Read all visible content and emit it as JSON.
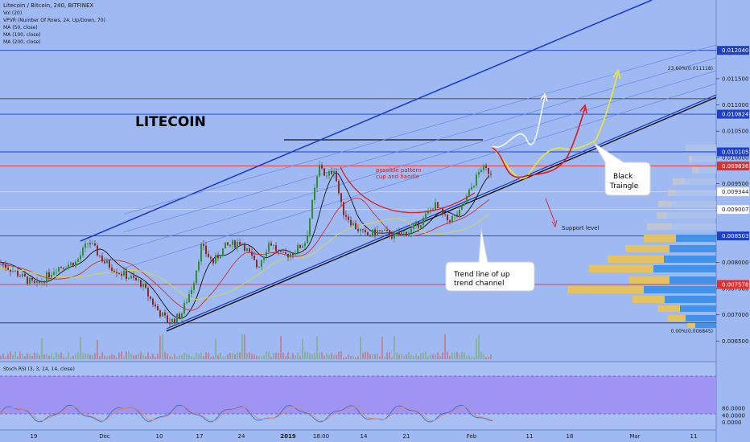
{
  "header": {
    "symbol_line": "Litecoin / Bitcoin, 240, BITFINEX",
    "indicators": [
      "Vol (20)",
      "VPVR (Number Of Rows, 24, Up/Down, 70)",
      "MA (50, close)",
      "MA (100, close)",
      "MA (200, close)"
    ]
  },
  "chart_data": {
    "type": "candlestick",
    "title": "LITECOIN",
    "ylim": [
      0.0063,
      0.0122
    ],
    "y_ticks": [
      "0.006500",
      "0.007000",
      "0.007500",
      "0.008000",
      "0.008500",
      "0.009000",
      "0.009500",
      "0.010000",
      "0.010500",
      "0.011000",
      "0.011500"
    ],
    "x_ticks": [
      "19",
      "Dec",
      "10",
      "17",
      "24",
      "2019",
      "18:00",
      "14",
      "21",
      "Feb",
      "11",
      "18",
      "Mar",
      "11"
    ],
    "price_tags": [
      {
        "label": "0.012040",
        "value": 0.01204,
        "color": "#1e3fc8"
      },
      {
        "label": "0.010824",
        "value": 0.010824,
        "color": "#1e3fc8"
      },
      {
        "label": "0.010105",
        "value": 0.010105,
        "color": "#1e3fc8"
      },
      {
        "label": "0.009836",
        "value": 0.009836,
        "color": "#e03030"
      },
      {
        "label": "0.009344",
        "value": 0.009344,
        "color": "none"
      },
      {
        "label": "0.009007",
        "value": 0.009007,
        "color": "none"
      },
      {
        "label": "0.008503",
        "value": 0.008503,
        "color": "#1e3fc8"
      },
      {
        "label": "0.007578",
        "value": 0.007578,
        "color": "#e03030"
      }
    ],
    "fib_levels": [
      "23.60%(0.011118)",
      "0.00%(0.006845)"
    ],
    "annotations": {
      "pattern": [
        "possible pattern",
        "cup and handle"
      ],
      "support": "Support level",
      "black_triangle": [
        "Black",
        "Traingle"
      ],
      "trend_line": [
        "Trend line of up",
        "trend channel"
      ]
    },
    "stoch": {
      "label": "Stoch RSI (3, 3, 14, 14, close)",
      "ticks": [
        "80.0000",
        "40.0000",
        "0.0000"
      ],
      "ylim": [
        0,
        100
      ],
      "band": [
        20,
        80
      ]
    },
    "colors": {
      "background": "#9fbaf2",
      "bull": "#2f8f2f",
      "bear": "#8b2a2a",
      "channel": "#1838c8",
      "ma50": "#111111",
      "ma100": "#d03030",
      "ma200": "#d8d840",
      "vp_up": "#e8c25a",
      "vp_down": "#3d8fe8"
    }
  }
}
